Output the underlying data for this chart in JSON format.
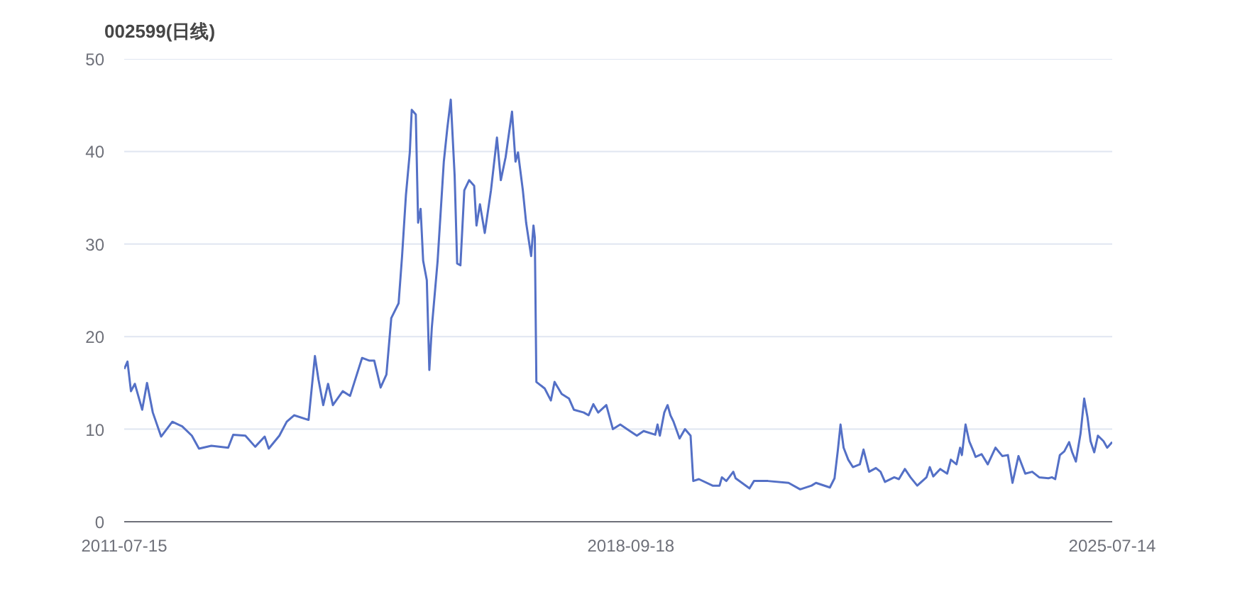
{
  "chart_data": {
    "type": "line",
    "title": "002599(日线)",
    "color": "#5470c6",
    "line_style": "solid",
    "x": [
      "2011-07-15",
      "2011-08-01",
      "2011-08-19",
      "2011-09-08",
      "2011-10-16",
      "2011-11-10",
      "2011-12-10",
      "2012-01-22",
      "2012-03-20",
      "2012-05-10",
      "2012-06-29",
      "2012-08-05",
      "2012-10-08",
      "2013-01-03",
      "2013-01-29",
      "2013-04-02",
      "2013-05-23",
      "2013-07-11",
      "2013-08-01",
      "2013-09-25",
      "2013-11-02",
      "2013-12-10",
      "2014-02-23",
      "2014-03-28",
      "2014-04-15",
      "2014-05-10",
      "2014-06-04",
      "2014-06-29",
      "2014-08-19",
      "2014-09-26",
      "2014-11-27",
      "2015-01-04",
      "2015-01-29",
      "2015-03-03",
      "2015-04-02",
      "2015-04-27",
      "2015-06-04",
      "2015-06-22",
      "2015-07-12",
      "2015-08-01",
      "2015-08-11",
      "2015-09-01",
      "2015-09-13",
      "2015-09-26",
      "2015-10-09",
      "2015-10-28",
      "2015-11-10",
      "2015-11-23",
      "2015-12-23",
      "2016-01-24",
      "2016-02-11",
      "2016-02-29",
      "2016-03-20",
      "2016-04-02",
      "2016-04-19",
      "2016-05-09",
      "2016-06-03",
      "2016-06-29",
      "2016-07-11",
      "2016-07-29",
      "2016-08-23",
      "2016-09-24",
      "2016-10-25",
      "2016-11-14",
      "2016-12-09",
      "2017-01-11",
      "2017-01-29",
      "2017-02-11",
      "2017-03-08",
      "2017-03-25",
      "2017-04-20",
      "2017-05-02",
      "2017-05-09",
      "2017-05-17",
      "2017-06-29",
      "2017-07-31",
      "2017-08-19",
      "2017-09-25",
      "2017-11-02",
      "2017-11-27",
      "2018-01-17",
      "2018-02-11",
      "2018-03-08",
      "2018-04-02",
      "2018-05-14",
      "2018-06-17",
      "2018-07-25",
      "2018-09-13",
      "2018-10-19",
      "2018-11-23",
      "2019-01-22",
      "2019-02-03",
      "2019-02-15",
      "2019-03-10",
      "2019-03-27",
      "2019-04-11",
      "2019-04-27",
      "2019-05-28",
      "2019-06-25",
      "2019-07-24",
      "2019-08-07",
      "2019-09-05",
      "2019-11-15",
      "2019-12-21",
      "2020-01-02",
      "2020-01-25",
      "2020-03-01",
      "2020-03-13",
      "2020-05-24",
      "2020-06-16",
      "2020-08-27",
      "2020-12-12",
      "2021-02-10",
      "2021-04-10",
      "2021-05-03",
      "2021-07-14",
      "2021-08-07",
      "2021-08-24",
      "2021-09-07",
      "2021-09-23",
      "2021-10-17",
      "2021-11-10",
      "2021-12-16",
      "2022-01-04",
      "2022-02-02",
      "2022-03-09",
      "2022-04-02",
      "2022-04-25",
      "2022-06-12",
      "2022-07-06",
      "2022-08-06",
      "2022-09-04",
      "2022-10-09",
      "2022-11-26",
      "2022-12-13",
      "2022-12-31",
      "2023-02-05",
      "2023-03-13",
      "2023-04-01",
      "2023-04-30",
      "2023-05-19",
      "2023-05-28",
      "2023-06-16",
      "2023-07-05",
      "2023-07-29",
      "2023-08-07",
      "2023-09-07",
      "2023-10-09",
      "2023-11-18",
      "2023-12-23",
      "2024-01-21",
      "2024-02-14",
      "2024-03-16",
      "2024-04-20",
      "2024-05-26",
      "2024-07-01",
      "2024-08-18",
      "2024-09-05",
      "2024-09-22",
      "2024-10-16",
      "2024-11-08",
      "2024-12-03",
      "2024-12-19",
      "2025-01-07",
      "2025-01-31",
      "2025-02-19",
      "2025-03-08",
      "2025-03-24",
      "2025-04-12",
      "2025-05-01",
      "2025-05-30",
      "2025-06-18",
      "2025-07-14"
    ],
    "values": [
      16.5,
      17.3,
      14.1,
      14.9,
      12.1,
      15.0,
      11.8,
      9.2,
      10.8,
      10.3,
      9.3,
      7.9,
      8.2,
      8.0,
      9.4,
      9.3,
      8.1,
      9.2,
      7.9,
      9.3,
      10.8,
      11.5,
      11.0,
      17.9,
      15.4,
      12.6,
      14.9,
      12.6,
      14.1,
      13.6,
      17.7,
      17.4,
      17.4,
      14.5,
      15.9,
      22.0,
      23.6,
      28.7,
      35.3,
      39.9,
      44.5,
      44.0,
      32.3,
      33.8,
      28.2,
      26.1,
      16.4,
      21.0,
      28.2,
      38.9,
      42.5,
      45.6,
      37.4,
      27.9,
      27.7,
      35.8,
      36.9,
      36.3,
      32.0,
      34.3,
      31.2,
      35.8,
      41.5,
      36.9,
      39.4,
      44.3,
      38.9,
      39.9,
      35.8,
      32.3,
      28.7,
      32.0,
      30.7,
      15.1,
      14.4,
      13.1,
      15.1,
      13.8,
      13.3,
      12.1,
      11.8,
      11.5,
      12.7,
      11.8,
      12.6,
      10.0,
      10.5,
      9.8,
      9.3,
      9.8,
      9.4,
      10.5,
      9.3,
      11.8,
      12.6,
      11.5,
      10.8,
      9.0,
      10.0,
      9.3,
      4.4,
      4.6,
      3.9,
      3.9,
      4.8,
      4.4,
      5.4,
      4.7,
      3.6,
      4.4,
      4.4,
      4.2,
      3.5,
      3.9,
      4.2,
      3.7,
      4.7,
      7.7,
      10.5,
      8.0,
      6.7,
      5.9,
      6.2,
      7.8,
      5.4,
      5.8,
      5.4,
      4.3,
      4.8,
      4.6,
      5.7,
      4.8,
      3.9,
      4.8,
      5.9,
      4.9,
      5.7,
      5.2,
      6.7,
      6.2,
      8.0,
      7.2,
      10.5,
      8.7,
      7.5,
      7.0,
      7.3,
      6.2,
      8.0,
      7.1,
      7.2,
      4.2,
      7.1,
      5.2,
      5.4,
      4.8,
      4.7,
      4.8,
      4.6,
      7.2,
      7.6,
      8.6,
      7.5,
      6.5,
      9.5,
      13.3,
      11.3,
      8.7,
      7.5,
      9.3,
      8.7,
      8.0,
      8.6
    ],
    "xlim": [
      "2011-07-15",
      "2025-07-14"
    ],
    "xticks": [
      "2011-07-15",
      "2018-09-18",
      "2025-07-14"
    ],
    "ylim": [
      0,
      50
    ],
    "yticks": [
      0,
      10,
      20,
      30,
      40,
      50
    ],
    "grid": "y"
  }
}
